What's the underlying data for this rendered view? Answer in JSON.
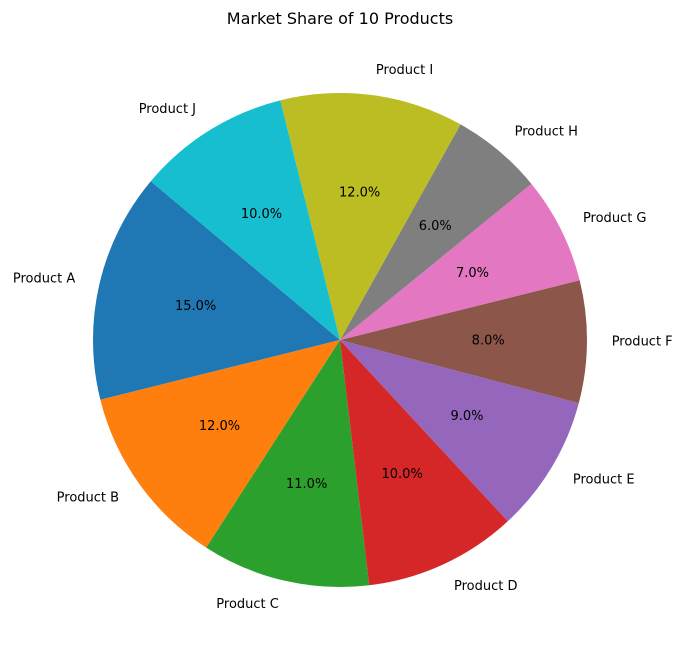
{
  "chart_data": {
    "type": "pie",
    "title": "Market Share of 10 Products",
    "categories": [
      "Product A",
      "Product B",
      "Product C",
      "Product D",
      "Product E",
      "Product F",
      "Product G",
      "Product H",
      "Product I",
      "Product J"
    ],
    "values": [
      15,
      12,
      11,
      10,
      9,
      8,
      7,
      6,
      12,
      10
    ],
    "value_labels": [
      "15.0%",
      "12.0%",
      "11.0%",
      "10.0%",
      "9.0%",
      "8.0%",
      "7.0%",
      "6.0%",
      "12.0%",
      "10.0%"
    ],
    "colors": [
      "#1f77b4",
      "#ff7f0e",
      "#2ca02c",
      "#d62728",
      "#9467bd",
      "#8c564b",
      "#e377c2",
      "#7f7f7f",
      "#bcbd22",
      "#17becf"
    ],
    "start_angle_deg": 140,
    "direction": "counterclockwise",
    "legend": "none"
  }
}
